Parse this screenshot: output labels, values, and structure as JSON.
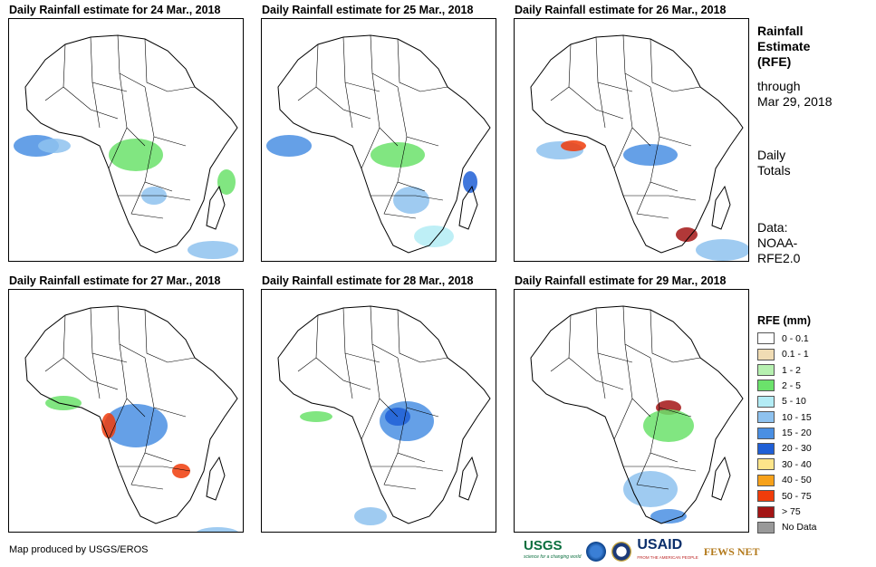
{
  "panels": [
    {
      "title": "Daily Rainfall estimate for 24 Mar., 2018"
    },
    {
      "title": "Daily Rainfall estimate for 25 Mar., 2018"
    },
    {
      "title": "Daily Rainfall estimate for 26 Mar., 2018"
    },
    {
      "title": "Daily Rainfall estimate for 27 Mar., 2018"
    },
    {
      "title": "Daily Rainfall estimate for 28 Mar., 2018"
    },
    {
      "title": "Daily Rainfall estimate for 29 Mar., 2018"
    }
  ],
  "side": {
    "title_line1": "Rainfall",
    "title_line2": "Estimate",
    "title_line3": "(RFE)",
    "through": "through",
    "date": "Mar 29, 2018",
    "totals_line1": "Daily",
    "totals_line2": "Totals",
    "data_line1": "Data:",
    "data_line2": "NOAA-",
    "data_line3": "RFE2.0"
  },
  "legend": {
    "title": "RFE (mm)",
    "items": [
      {
        "label": "0 - 0.1",
        "color": "#ffffff"
      },
      {
        "label": "0.1 - 1",
        "color": "#f0dcb4"
      },
      {
        "label": "1 - 2",
        "color": "#b6f0b0"
      },
      {
        "label": "2 - 5",
        "color": "#6be26b"
      },
      {
        "label": "5 - 10",
        "color": "#b3ecf5"
      },
      {
        "label": "10 - 15",
        "color": "#8ec2ef"
      },
      {
        "label": "15 - 20",
        "color": "#4a8fe3"
      },
      {
        "label": "20 - 30",
        "color": "#1f5fd6"
      },
      {
        "label": "30 - 40",
        "color": "#fde58a"
      },
      {
        "label": "40 - 50",
        "color": "#f7a11a"
      },
      {
        "label": "50 - 75",
        "color": "#f03c0a"
      },
      {
        "label": "> 75",
        "color": "#a31515"
      },
      {
        "label": "No Data",
        "color": "#999999"
      }
    ]
  },
  "footer": {
    "credit": "Map produced by USGS/EROS"
  },
  "logos": {
    "usgs": "USGS",
    "usgs_tagline": "science for a changing world",
    "usaid": "USAID",
    "usaid_tagline": "FROM THE AMERICAN PEOPLE",
    "fews": "FEWS NET"
  }
}
